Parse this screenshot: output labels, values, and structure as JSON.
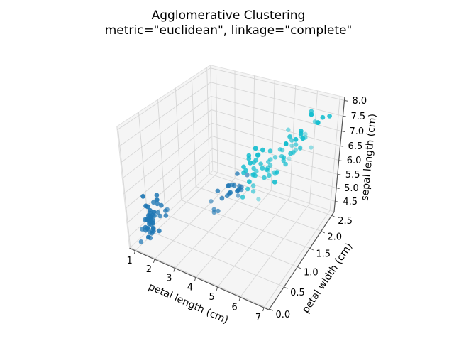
{
  "chart_data": {
    "type": "scatter",
    "projection": "3d",
    "title": "Agglomerative Clustering",
    "subtitle": "metric=\"euclidean\", linkage=\"complete\"",
    "xlabel": "petal length (cm)",
    "ylabel": "petal width (cm)",
    "zlabel": "sepal length (cm)",
    "xticks": [
      "1",
      "2",
      "3",
      "4",
      "5",
      "6",
      "7"
    ],
    "yticks": [
      "0.0",
      "0.5",
      "1.0",
      "1.5",
      "2.0",
      "2.5"
    ],
    "zticks": [
      "4.5",
      "5.0",
      "5.5",
      "6.0",
      "6.5",
      "7.0",
      "7.5",
      "8.0"
    ],
    "xlim": [
      0.7,
      7.2
    ],
    "ylim": [
      -0.02,
      2.62
    ],
    "zlim": [
      4.1,
      8.1
    ],
    "grid": true,
    "legend": "none",
    "cluster_colors": [
      "#1f77b4",
      "#17becf"
    ],
    "points_format": "[petal_length, petal_width, sepal_length, cluster]",
    "points": [
      [
        1.4,
        0.2,
        5.1,
        0
      ],
      [
        1.4,
        0.2,
        4.9,
        0
      ],
      [
        1.3,
        0.2,
        4.7,
        0
      ],
      [
        1.5,
        0.2,
        4.6,
        0
      ],
      [
        1.4,
        0.2,
        5.0,
        0
      ],
      [
        1.7,
        0.4,
        5.4,
        0
      ],
      [
        1.4,
        0.3,
        4.6,
        0
      ],
      [
        1.5,
        0.2,
        5.0,
        0
      ],
      [
        1.4,
        0.2,
        4.4,
        0
      ],
      [
        1.5,
        0.1,
        4.9,
        0
      ],
      [
        1.5,
        0.2,
        5.4,
        0
      ],
      [
        1.6,
        0.2,
        4.8,
        0
      ],
      [
        1.4,
        0.1,
        4.8,
        0
      ],
      [
        1.1,
        0.1,
        4.3,
        0
      ],
      [
        1.2,
        0.2,
        5.8,
        0
      ],
      [
        1.5,
        0.4,
        5.7,
        0
      ],
      [
        1.3,
        0.4,
        5.4,
        0
      ],
      [
        1.4,
        0.3,
        5.1,
        0
      ],
      [
        1.7,
        0.3,
        5.7,
        0
      ],
      [
        1.5,
        0.3,
        5.1,
        0
      ],
      [
        1.7,
        0.2,
        5.4,
        0
      ],
      [
        1.5,
        0.4,
        5.1,
        0
      ],
      [
        1.0,
        0.2,
        4.6,
        0
      ],
      [
        1.7,
        0.5,
        5.1,
        0
      ],
      [
        1.9,
        0.2,
        4.8,
        0
      ],
      [
        1.6,
        0.2,
        5.0,
        0
      ],
      [
        1.6,
        0.4,
        5.0,
        0
      ],
      [
        1.5,
        0.2,
        5.2,
        0
      ],
      [
        1.4,
        0.2,
        5.2,
        0
      ],
      [
        1.6,
        0.2,
        4.7,
        0
      ],
      [
        1.6,
        0.2,
        4.8,
        0
      ],
      [
        1.5,
        0.4,
        5.4,
        0
      ],
      [
        1.5,
        0.1,
        5.2,
        0
      ],
      [
        1.4,
        0.2,
        5.5,
        0
      ],
      [
        1.5,
        0.2,
        4.9,
        0
      ],
      [
        1.2,
        0.2,
        5.0,
        0
      ],
      [
        1.3,
        0.2,
        5.5,
        0
      ],
      [
        1.4,
        0.1,
        4.9,
        0
      ],
      [
        1.3,
        0.2,
        4.4,
        0
      ],
      [
        1.5,
        0.2,
        5.1,
        0
      ],
      [
        1.3,
        0.3,
        5.0,
        0
      ],
      [
        1.3,
        0.3,
        4.5,
        0
      ],
      [
        1.3,
        0.2,
        4.4,
        0
      ],
      [
        1.6,
        0.6,
        5.0,
        0
      ],
      [
        1.9,
        0.4,
        5.1,
        0
      ],
      [
        1.4,
        0.3,
        4.8,
        0
      ],
      [
        1.6,
        0.2,
        5.1,
        0
      ],
      [
        1.4,
        0.2,
        4.6,
        0
      ],
      [
        1.5,
        0.2,
        5.3,
        0
      ],
      [
        1.4,
        0.2,
        5.0,
        0
      ],
      [
        4.7,
        1.4,
        7.0,
        1
      ],
      [
        4.5,
        1.5,
        6.4,
        1
      ],
      [
        4.9,
        1.5,
        6.9,
        1
      ],
      [
        4.0,
        1.3,
        5.5,
        0
      ],
      [
        4.6,
        1.5,
        6.5,
        1
      ],
      [
        4.5,
        1.3,
        5.7,
        1
      ],
      [
        4.7,
        1.6,
        6.3,
        1
      ],
      [
        3.3,
        1.0,
        4.9,
        0
      ],
      [
        4.6,
        1.3,
        6.6,
        1
      ],
      [
        3.9,
        1.4,
        5.2,
        0
      ],
      [
        3.5,
        1.0,
        5.0,
        0
      ],
      [
        4.2,
        1.5,
        5.9,
        0
      ],
      [
        4.0,
        1.0,
        6.0,
        0
      ],
      [
        4.7,
        1.4,
        6.1,
        1
      ],
      [
        3.6,
        1.3,
        5.6,
        0
      ],
      [
        4.4,
        1.4,
        6.7,
        1
      ],
      [
        4.5,
        1.5,
        5.6,
        1
      ],
      [
        4.1,
        1.0,
        5.8,
        0
      ],
      [
        4.5,
        1.5,
        6.2,
        1
      ],
      [
        3.9,
        1.1,
        5.6,
        0
      ],
      [
        4.8,
        1.8,
        5.9,
        1
      ],
      [
        4.0,
        1.3,
        6.1,
        0
      ],
      [
        4.9,
        1.5,
        6.3,
        1
      ],
      [
        4.7,
        1.2,
        6.1,
        1
      ],
      [
        4.3,
        1.3,
        6.4,
        1
      ],
      [
        4.4,
        1.4,
        6.6,
        1
      ],
      [
        4.8,
        1.4,
        6.8,
        1
      ],
      [
        5.0,
        1.7,
        6.7,
        1
      ],
      [
        4.5,
        1.5,
        6.0,
        1
      ],
      [
        3.5,
        1.0,
        5.7,
        0
      ],
      [
        3.8,
        1.1,
        5.5,
        0
      ],
      [
        3.7,
        1.0,
        5.5,
        0
      ],
      [
        3.9,
        1.2,
        5.8,
        0
      ],
      [
        5.1,
        1.6,
        6.0,
        1
      ],
      [
        4.5,
        1.5,
        5.4,
        1
      ],
      [
        4.5,
        1.6,
        6.0,
        1
      ],
      [
        4.7,
        1.5,
        6.7,
        1
      ],
      [
        4.4,
        1.3,
        6.3,
        1
      ],
      [
        4.1,
        1.3,
        5.6,
        0
      ],
      [
        4.0,
        1.3,
        5.5,
        0
      ],
      [
        4.4,
        1.2,
        5.5,
        1
      ],
      [
        4.6,
        1.4,
        6.1,
        1
      ],
      [
        4.0,
        1.2,
        5.8,
        0
      ],
      [
        3.3,
        1.0,
        5.0,
        0
      ],
      [
        4.2,
        1.3,
        5.6,
        0
      ],
      [
        4.2,
        1.2,
        5.7,
        0
      ],
      [
        4.2,
        1.3,
        5.7,
        0
      ],
      [
        4.3,
        1.3,
        6.2,
        1
      ],
      [
        3.0,
        1.1,
        5.1,
        0
      ],
      [
        4.1,
        1.3,
        5.7,
        0
      ],
      [
        6.0,
        2.5,
        6.3,
        1
      ],
      [
        5.1,
        1.9,
        5.8,
        1
      ],
      [
        5.9,
        2.1,
        7.1,
        1
      ],
      [
        5.6,
        1.8,
        6.3,
        1
      ],
      [
        5.8,
        2.2,
        6.5,
        1
      ],
      [
        6.6,
        2.1,
        7.6,
        1
      ],
      [
        4.5,
        1.7,
        4.9,
        1
      ],
      [
        6.3,
        1.8,
        7.3,
        1
      ],
      [
        5.8,
        1.8,
        6.7,
        1
      ],
      [
        6.1,
        2.5,
        7.2,
        1
      ],
      [
        5.1,
        2.0,
        6.5,
        1
      ],
      [
        5.3,
        1.9,
        6.4,
        1
      ],
      [
        5.5,
        2.1,
        6.8,
        1
      ],
      [
        5.0,
        2.0,
        5.7,
        1
      ],
      [
        5.1,
        2.4,
        5.8,
        1
      ],
      [
        5.3,
        2.3,
        6.4,
        1
      ],
      [
        5.5,
        1.8,
        6.5,
        1
      ],
      [
        6.7,
        2.2,
        7.7,
        1
      ],
      [
        6.9,
        2.3,
        7.7,
        1
      ],
      [
        5.0,
        1.5,
        6.0,
        1
      ],
      [
        5.7,
        2.3,
        6.9,
        1
      ],
      [
        4.9,
        2.0,
        5.6,
        1
      ],
      [
        6.7,
        2.0,
        7.7,
        1
      ],
      [
        4.9,
        1.8,
        6.3,
        1
      ],
      [
        5.7,
        2.1,
        6.7,
        1
      ],
      [
        6.0,
        1.8,
        7.2,
        1
      ],
      [
        4.8,
        1.8,
        6.2,
        1
      ],
      [
        4.9,
        1.8,
        6.1,
        1
      ],
      [
        5.6,
        2.1,
        6.4,
        1
      ],
      [
        5.8,
        1.6,
        7.2,
        1
      ],
      [
        6.1,
        1.9,
        7.4,
        1
      ],
      [
        6.4,
        2.0,
        7.9,
        1
      ],
      [
        5.6,
        2.2,
        6.4,
        1
      ],
      [
        5.1,
        1.5,
        6.3,
        1
      ],
      [
        5.6,
        1.4,
        6.1,
        1
      ],
      [
        6.1,
        2.3,
        7.7,
        1
      ],
      [
        5.6,
        2.4,
        6.3,
        1
      ],
      [
        5.5,
        1.8,
        6.4,
        1
      ],
      [
        4.8,
        1.8,
        6.0,
        1
      ],
      [
        5.4,
        2.1,
        6.9,
        1
      ],
      [
        5.6,
        2.4,
        6.7,
        1
      ],
      [
        5.1,
        2.3,
        6.9,
        1
      ],
      [
        5.1,
        1.9,
        5.8,
        1
      ],
      [
        5.9,
        2.3,
        6.8,
        1
      ],
      [
        5.7,
        2.5,
        6.7,
        1
      ],
      [
        5.2,
        2.3,
        6.7,
        1
      ],
      [
        5.0,
        1.9,
        6.3,
        1
      ],
      [
        5.2,
        2.0,
        6.5,
        1
      ],
      [
        5.4,
        2.3,
        6.2,
        1
      ],
      [
        5.1,
        1.8,
        5.9,
        1
      ]
    ]
  }
}
